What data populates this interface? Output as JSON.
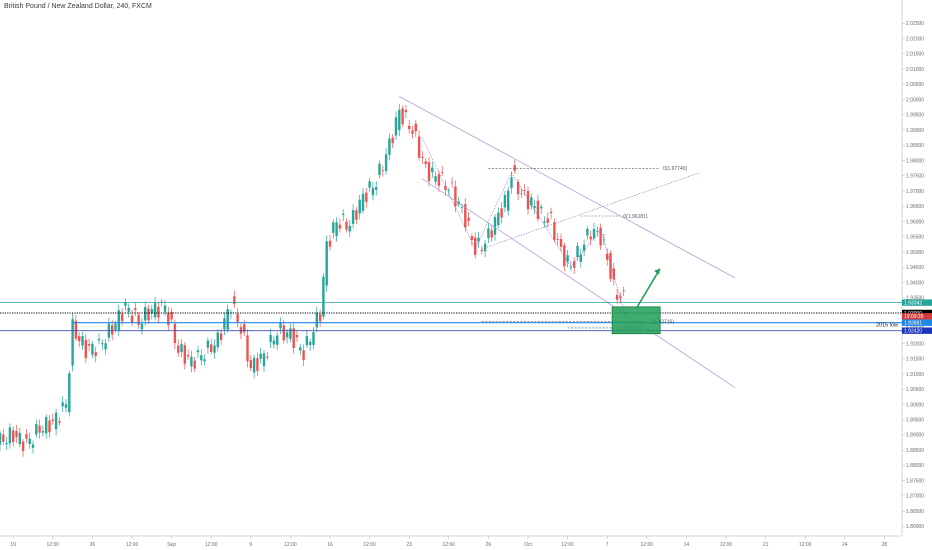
{
  "header": {
    "title": "British Pound / New Zealand Dollar, 240, FXCM"
  },
  "chart_data": {
    "type": "candlestick",
    "symbol": "GBPNZD",
    "interval": "240",
    "source": "FXCM",
    "ylim": [
      1.8585,
      2.031
    ],
    "y_ticks": [
      "2.02500",
      "2.02000",
      "2.01500",
      "2.01000",
      "2.00500",
      "2.00000",
      "1.99500",
      "1.99000",
      "1.98500",
      "1.98000",
      "1.97500",
      "1.97000",
      "1.96500",
      "1.96000",
      "1.95500",
      "1.95000",
      "1.94500",
      "1.94000",
      "1.93500",
      "1.93000",
      "1.92500",
      "1.92000",
      "1.91500",
      "1.91000",
      "1.90500",
      "1.90000",
      "1.89500",
      "1.89000",
      "1.88500",
      "1.88000",
      "1.87500",
      "1.87000",
      "1.86500",
      "1.86000"
    ],
    "x_ticks": [
      {
        "i": 4,
        "label": "19"
      },
      {
        "i": 16,
        "label": "12:00"
      },
      {
        "i": 28,
        "label": "26"
      },
      {
        "i": 40,
        "label": "12:00"
      },
      {
        "i": 52,
        "label": "Sep"
      },
      {
        "i": 64,
        "label": "12:00"
      },
      {
        "i": 76,
        "label": "9"
      },
      {
        "i": 88,
        "label": "12:00"
      },
      {
        "i": 100,
        "label": "16"
      },
      {
        "i": 112,
        "label": "12:00"
      },
      {
        "i": 124,
        "label": "23"
      },
      {
        "i": 136,
        "label": "12:00"
      },
      {
        "i": 148,
        "label": "26"
      },
      {
        "i": 160,
        "label": "Oct"
      },
      {
        "i": 172,
        "label": "12:00"
      },
      {
        "i": 184,
        "label": "7"
      },
      {
        "i": 196,
        "label": "12:00"
      },
      {
        "i": 208,
        "label": "14"
      },
      {
        "i": 220,
        "label": "12:00"
      },
      {
        "i": 232,
        "label": "21"
      },
      {
        "i": 244,
        "label": "12:00"
      },
      {
        "i": 256,
        "label": "24"
      },
      {
        "i": 268,
        "label": "28"
      }
    ],
    "candle_count": 190,
    "path_anchors": [
      {
        "i": 0,
        "p": 1.888
      },
      {
        "i": 4,
        "p": 1.89
      },
      {
        "i": 8,
        "p": 1.887
      },
      {
        "i": 12,
        "p": 1.892
      },
      {
        "i": 16,
        "p": 1.894
      },
      {
        "i": 20,
        "p": 1.9
      },
      {
        "i": 22,
        "p": 1.925
      },
      {
        "i": 26,
        "p": 1.918
      },
      {
        "i": 30,
        "p": 1.919
      },
      {
        "i": 34,
        "p": 1.925
      },
      {
        "i": 38,
        "p": 1.932
      },
      {
        "i": 42,
        "p": 1.927
      },
      {
        "i": 46,
        "p": 1.931
      },
      {
        "i": 50,
        "p": 1.932
      },
      {
        "i": 54,
        "p": 1.918
      },
      {
        "i": 58,
        "p": 1.914
      },
      {
        "i": 62,
        "p": 1.917
      },
      {
        "i": 66,
        "p": 1.921
      },
      {
        "i": 70,
        "p": 1.933
      },
      {
        "i": 73,
        "p": 1.925
      },
      {
        "i": 76,
        "p": 1.912
      },
      {
        "i": 80,
        "p": 1.916
      },
      {
        "i": 84,
        "p": 1.924
      },
      {
        "i": 88,
        "p": 1.923
      },
      {
        "i": 92,
        "p": 1.917
      },
      {
        "i": 94,
        "p": 1.922
      },
      {
        "i": 97,
        "p": 1.93
      },
      {
        "i": 99,
        "p": 1.952
      },
      {
        "i": 102,
        "p": 1.96
      },
      {
        "i": 106,
        "p": 1.959
      },
      {
        "i": 110,
        "p": 1.968
      },
      {
        "i": 114,
        "p": 1.973
      },
      {
        "i": 118,
        "p": 1.985
      },
      {
        "i": 121,
        "p": 1.996
      },
      {
        "i": 125,
        "p": 1.99
      },
      {
        "i": 129,
        "p": 1.977
      },
      {
        "i": 133,
        "p": 1.974
      },
      {
        "i": 137,
        "p": 1.97
      },
      {
        "i": 141,
        "p": 1.961
      },
      {
        "i": 144,
        "p": 1.951
      },
      {
        "i": 147,
        "p": 1.953
      },
      {
        "i": 150,
        "p": 1.96
      },
      {
        "i": 153,
        "p": 1.966
      },
      {
        "i": 155,
        "p": 1.976
      },
      {
        "i": 158,
        "p": 1.969
      },
      {
        "i": 161,
        "p": 1.966
      },
      {
        "i": 164,
        "p": 1.962
      },
      {
        "i": 167,
        "p": 1.96
      },
      {
        "i": 170,
        "p": 1.95
      },
      {
        "i": 173,
        "p": 1.945
      },
      {
        "i": 176,
        "p": 1.951
      },
      {
        "i": 179,
        "p": 1.957
      },
      {
        "i": 182,
        "p": 1.955
      },
      {
        "i": 184,
        "p": 1.948
      },
      {
        "i": 186,
        "p": 1.938
      },
      {
        "i": 188,
        "p": 1.935
      }
    ],
    "horizontal_levels": [
      {
        "name": "resistance-line",
        "price": 1.9334,
        "color": "#26a69a"
      },
      {
        "name": "dotted-level",
        "price": 1.93,
        "color": "#000000"
      },
      {
        "name": "blue-line",
        "price": 1.9268,
        "color": "#1e88e5"
      },
      {
        "name": "blue-line-2",
        "price": 1.9242,
        "color": "#3f51b5"
      }
    ],
    "price_tags": [
      {
        "label": "1.93342",
        "price": 1.9334,
        "color": "#26a69a"
      },
      {
        "label": "1.93000",
        "price": 1.93,
        "color": "#000000"
      },
      {
        "label": "19:09:29",
        "price": 1.9289,
        "color": "#d23c3c"
      },
      {
        "label": "1.92681",
        "price": 1.9268,
        "color": "#1e88e5"
      },
      {
        "label": "1.92420",
        "price": 1.9242,
        "color": "#1a35b8"
      }
    ],
    "fib_labels": [
      "0(1.97740)",
      "0(1.96181)",
      "1(1.92716)",
      "1(1.92510)"
    ],
    "annotations": [
      "2015 low"
    ],
    "colors": {
      "up": "#26a69a",
      "down": "#ef5350",
      "zone": "#1e9e57",
      "channel": "#b39ddb",
      "projection": "#7e57c2",
      "arrow": "#1e9e57"
    }
  }
}
